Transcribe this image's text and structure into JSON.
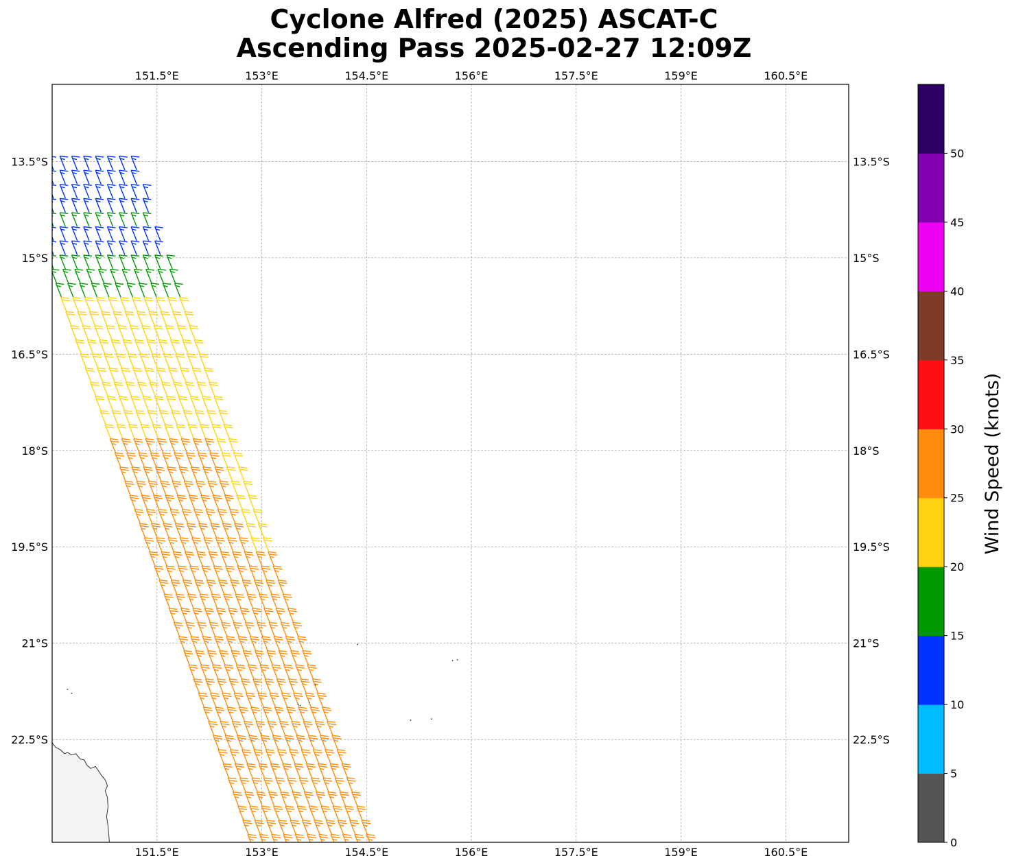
{
  "title": {
    "line1": "Cyclone Alfred (2025) ASCAT-C",
    "line2": "Ascending Pass 2025-02-27 12:09Z"
  },
  "map": {
    "projection": "PlateCarree",
    "lon_range": [
      150.0,
      161.4
    ],
    "lat_range": [
      -24.1,
      -12.3
    ],
    "gridlines": true,
    "lon_ticks": [
      {
        "value": 151.5,
        "label": "151.5°E"
      },
      {
        "value": 153.0,
        "label": "153°E"
      },
      {
        "value": 154.5,
        "label": "154.5°E"
      },
      {
        "value": 156.0,
        "label": "156°E"
      },
      {
        "value": 157.5,
        "label": "157.5°E"
      },
      {
        "value": 159.0,
        "label": "159°E"
      },
      {
        "value": 160.5,
        "label": "160.5°E"
      }
    ],
    "lat_ticks": [
      {
        "value": -13.5,
        "label": "13.5°S"
      },
      {
        "value": -15.0,
        "label": "15°S"
      },
      {
        "value": -16.5,
        "label": "16.5°S"
      },
      {
        "value": -18.0,
        "label": "18°S"
      },
      {
        "value": -19.5,
        "label": "19.5°S"
      },
      {
        "value": -21.0,
        "label": "21°S"
      },
      {
        "value": -22.5,
        "label": "22.5°S"
      }
    ],
    "coastline_color": "#333333",
    "land_fill": "#f4f4f4"
  },
  "wind_barbs": {
    "swath_west_edge_lon_at_13_4S": 150.0,
    "swath_drift_deg_lon_per_deg_lat": 0.32,
    "swath_width_deg_lon": 1.25,
    "row_spacing_deg_lat": 0.22,
    "col_spacing_deg_lon": 0.17,
    "lat_start": -13.4,
    "lat_end": -24.0,
    "speed_by_lat": [
      {
        "lat_from": -13.4,
        "lat_to": -14.1,
        "speed_kt": 13
      },
      {
        "lat_from": -14.1,
        "lat_to": -14.4,
        "speed_kt": 16
      },
      {
        "lat_from": -14.4,
        "lat_to": -14.9,
        "speed_kt": 13
      },
      {
        "lat_from": -14.9,
        "lat_to": -15.4,
        "speed_kt": 17
      },
      {
        "lat_from": -15.4,
        "lat_to": -17.6,
        "speed_kt": 22
      },
      {
        "lat_from": -17.6,
        "lat_to": -19.0,
        "speed_kt": 26
      },
      {
        "lat_from": -19.0,
        "lat_to": -22.6,
        "speed_kt": 27
      },
      {
        "lat_from": -22.6,
        "lat_to": -24.1,
        "speed_kt": 27
      }
    ],
    "east_band_speed_kt": 22,
    "south_west_patch_speed_kt": 22
  },
  "colorbar": {
    "title": "Wind Speed (knots)",
    "bins": [
      {
        "from": 0,
        "to": 5,
        "color": "#555555"
      },
      {
        "from": 5,
        "to": 10,
        "color": "#00bbff"
      },
      {
        "from": 10,
        "to": 15,
        "color": "#0033ff"
      },
      {
        "from": 15,
        "to": 20,
        "color": "#009900"
      },
      {
        "from": 20,
        "to": 25,
        "color": "#ffd311"
      },
      {
        "from": 25,
        "to": 30,
        "color": "#ff8c0c"
      },
      {
        "from": 30,
        "to": 35,
        "color": "#ff0f14"
      },
      {
        "from": 35,
        "to": 40,
        "color": "#7f3a28"
      },
      {
        "from": 40,
        "to": 45,
        "color": "#f000f0"
      },
      {
        "from": 45,
        "to": 50,
        "color": "#8000b0"
      },
      {
        "from": 50,
        "to": 55,
        "color": "#2c0062"
      }
    ],
    "tick_labels": [
      "0",
      "5",
      "10",
      "15",
      "20",
      "25",
      "30",
      "35",
      "40",
      "45",
      "50"
    ]
  }
}
